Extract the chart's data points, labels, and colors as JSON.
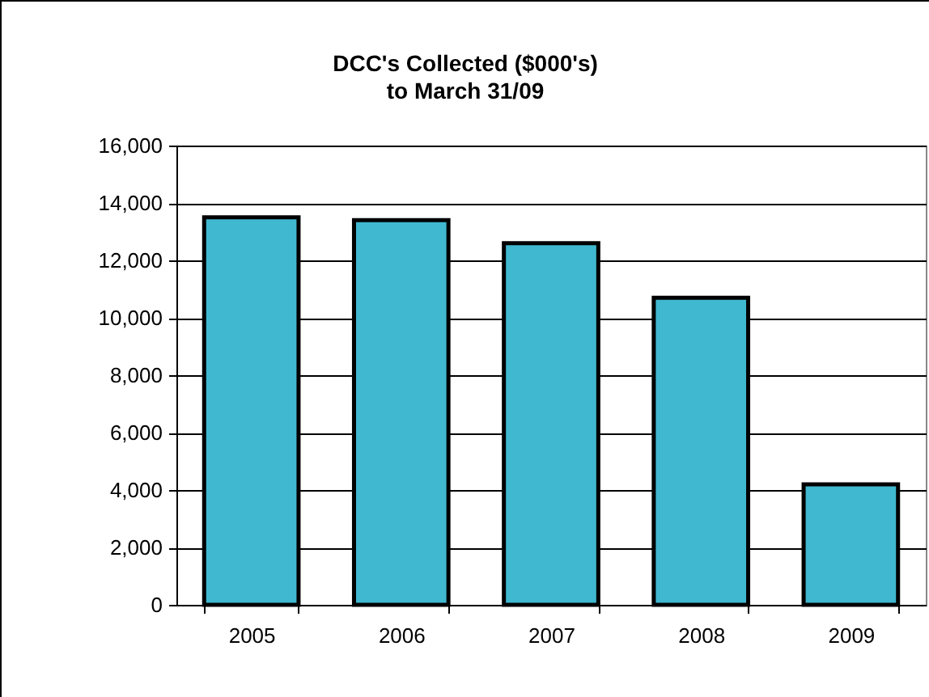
{
  "chart_data": {
    "type": "bar",
    "title": "DCC's Collected ($000's)\nto March 31/09",
    "categories": [
      "2005",
      "2006",
      "2007",
      "2008",
      "2009"
    ],
    "values": [
      13500,
      13400,
      12600,
      10700,
      4200
    ],
    "color": "#40b8cf",
    "ylim": [
      0,
      16000
    ],
    "yticks": [
      0,
      {
        "value": 2000,
        "label": "2,000"
      },
      {
        "value": 4000,
        "label": "4,000"
      },
      {
        "value": 6000,
        "label": "6,000"
      },
      {
        "value": 8000,
        "label": "8,000"
      },
      {
        "value": 10000,
        "label": "10,000"
      },
      {
        "value": 12000,
        "label": "12,000"
      },
      {
        "value": 14000,
        "label": "14,000"
      },
      {
        "value": 16000,
        "label": "16,000"
      }
    ],
    "grid": "y"
  }
}
